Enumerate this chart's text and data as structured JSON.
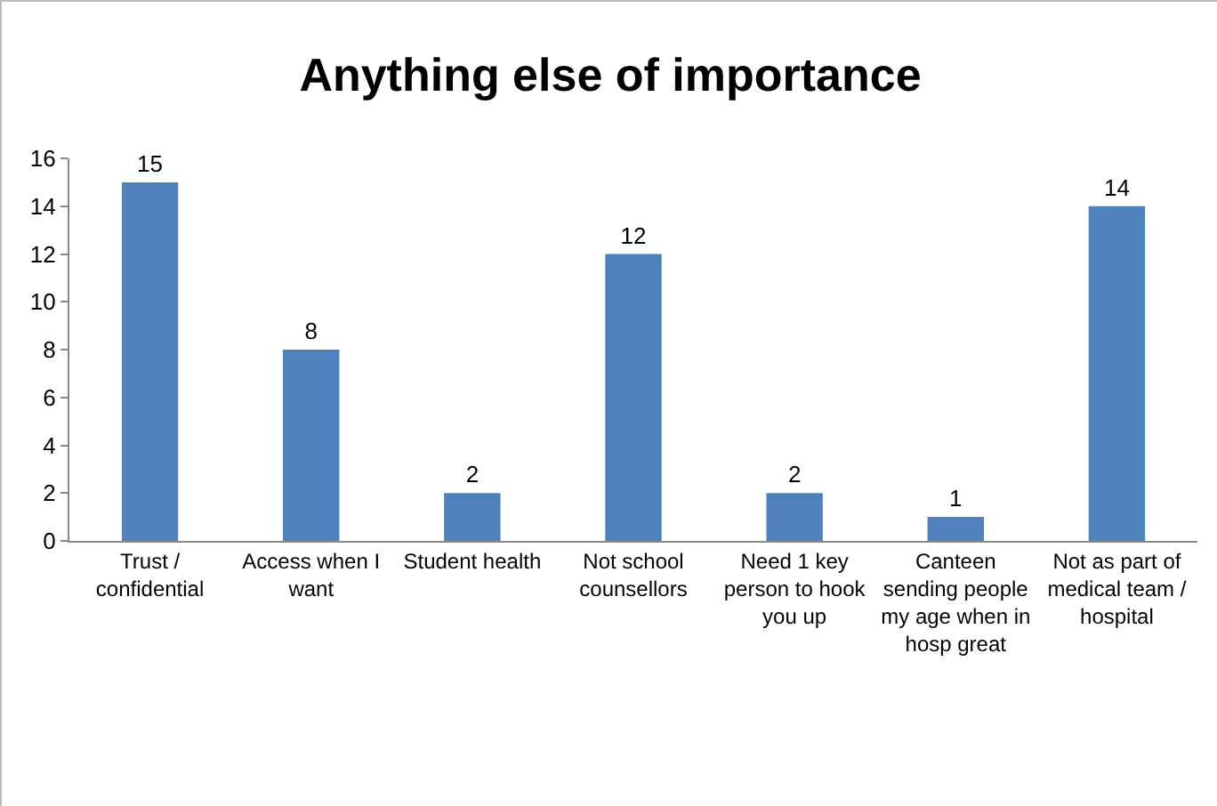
{
  "chart_data": {
    "type": "bar",
    "title": "Anything else of importance",
    "categories": [
      "Trust / confidential",
      "Access when I want",
      "Student health",
      "Not school counsellors",
      "Need 1 key person to hook you up",
      "Canteen sending people my age when in hosp great",
      "Not as part of medical team / hospital"
    ],
    "values": [
      15,
      8,
      2,
      12,
      2,
      1,
      14
    ],
    "color": "#4f81bd",
    "data_labels": true,
    "ylim": [
      0,
      16
    ],
    "yticks": [
      0,
      2,
      4,
      6,
      8,
      10,
      12,
      14,
      16
    ],
    "grid": false
  }
}
